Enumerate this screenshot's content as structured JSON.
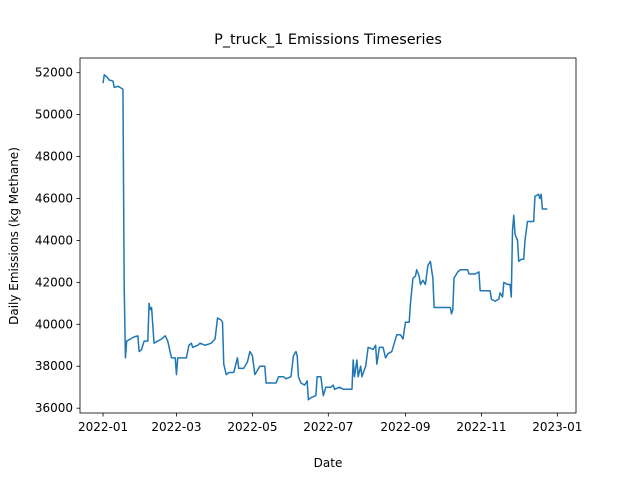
{
  "chart_data": {
    "type": "line",
    "title": "P_truck_1 Emissions Timeseries",
    "x_label": "Date",
    "y_label": "Daily Emissions (kg Methane)",
    "xlim": [
      -18.5,
      380
    ],
    "ylim": [
      35770,
      52700
    ],
    "xticks": [
      {
        "value": 0,
        "label": "2022-01"
      },
      {
        "value": 59,
        "label": "2022-03"
      },
      {
        "value": 120,
        "label": "2022-05"
      },
      {
        "value": 181,
        "label": "2022-07"
      },
      {
        "value": 243,
        "label": "2022-09"
      },
      {
        "value": 304,
        "label": "2022-11"
      },
      {
        "value": 365,
        "label": "2023-01"
      }
    ],
    "yticks": [
      36000,
      38000,
      40000,
      42000,
      44000,
      46000,
      48000,
      50000,
      52000
    ],
    "grid": false,
    "series": [
      {
        "color": "#1f77b4",
        "x": [
          0,
          1,
          3,
          5,
          8,
          9,
          12,
          15,
          16,
          17,
          18,
          19,
          22,
          25,
          28,
          29,
          31,
          33,
          36,
          37,
          38,
          39,
          41,
          44,
          47,
          50,
          52,
          55,
          58,
          59,
          60,
          63,
          67,
          69,
          71,
          72,
          76,
          78,
          82,
          87,
          90,
          92,
          95,
          96,
          97,
          99,
          101,
          105,
          108,
          109,
          113,
          116,
          118,
          120,
          122,
          126,
          130,
          131,
          136,
          139,
          141,
          145,
          147,
          151,
          153,
          155,
          156,
          157,
          159,
          162,
          164,
          165,
          167,
          171,
          172,
          175,
          177,
          179,
          183,
          185,
          186,
          190,
          193,
          200,
          201,
          202,
          204,
          205,
          207,
          208,
          211,
          213,
          217,
          219,
          220,
          222,
          225,
          227,
          229,
          232,
          236,
          239,
          241,
          243,
          246,
          247,
          249,
          251,
          252,
          254,
          255,
          257,
          259,
          261,
          263,
          265,
          266,
          270,
          276,
          279,
          280,
          281,
          282,
          285,
          287,
          293,
          294,
          299,
          302,
          303,
          308,
          311,
          312,
          315,
          318,
          319,
          321,
          322,
          325,
          327,
          328,
          329,
          330,
          331,
          333,
          334,
          336,
          338,
          339,
          341,
          346,
          347,
          350,
          351,
          352,
          353,
          357
        ],
        "values": [
          51500,
          51900,
          51800,
          51650,
          51600,
          51300,
          51350,
          51250,
          51200,
          41800,
          38400,
          39200,
          39300,
          39400,
          39450,
          38700,
          38800,
          39200,
          39200,
          41000,
          40700,
          40800,
          39100,
          39200,
          39300,
          39450,
          39200,
          38400,
          38400,
          37600,
          38400,
          38400,
          38400,
          39000,
          39100,
          38900,
          39000,
          39100,
          39000,
          39100,
          39300,
          40300,
          40200,
          40100,
          38100,
          37600,
          37700,
          37700,
          38400,
          37900,
          37900,
          38200,
          38700,
          38500,
          37600,
          38000,
          38000,
          37200,
          37200,
          37200,
          37500,
          37500,
          37400,
          37500,
          38500,
          38700,
          38500,
          37500,
          37200,
          37100,
          37300,
          36400,
          36500,
          36600,
          37500,
          37500,
          36600,
          37000,
          37000,
          37100,
          36900,
          37000,
          36900,
          36900,
          38300,
          37500,
          38300,
          37500,
          38000,
          37500,
          38000,
          38900,
          38800,
          39000,
          38100,
          38900,
          38900,
          38400,
          38600,
          38700,
          39500,
          39500,
          39300,
          40100,
          40100,
          41000,
          42200,
          42300,
          42600,
          42300,
          41900,
          42100,
          41900,
          42800,
          43000,
          42200,
          40800,
          40800,
          40800,
          40800,
          40500,
          40700,
          42200,
          42500,
          42600,
          42600,
          42400,
          42400,
          42500,
          41600,
          41600,
          41600,
          41200,
          41100,
          41200,
          41500,
          41300,
          42000,
          41900,
          41900,
          41300,
          44500,
          45200,
          44300,
          44000,
          43000,
          43100,
          43100,
          44000,
          44900,
          44900,
          46100,
          46200,
          46000,
          46200,
          45500,
          45500
        ]
      }
    ]
  }
}
